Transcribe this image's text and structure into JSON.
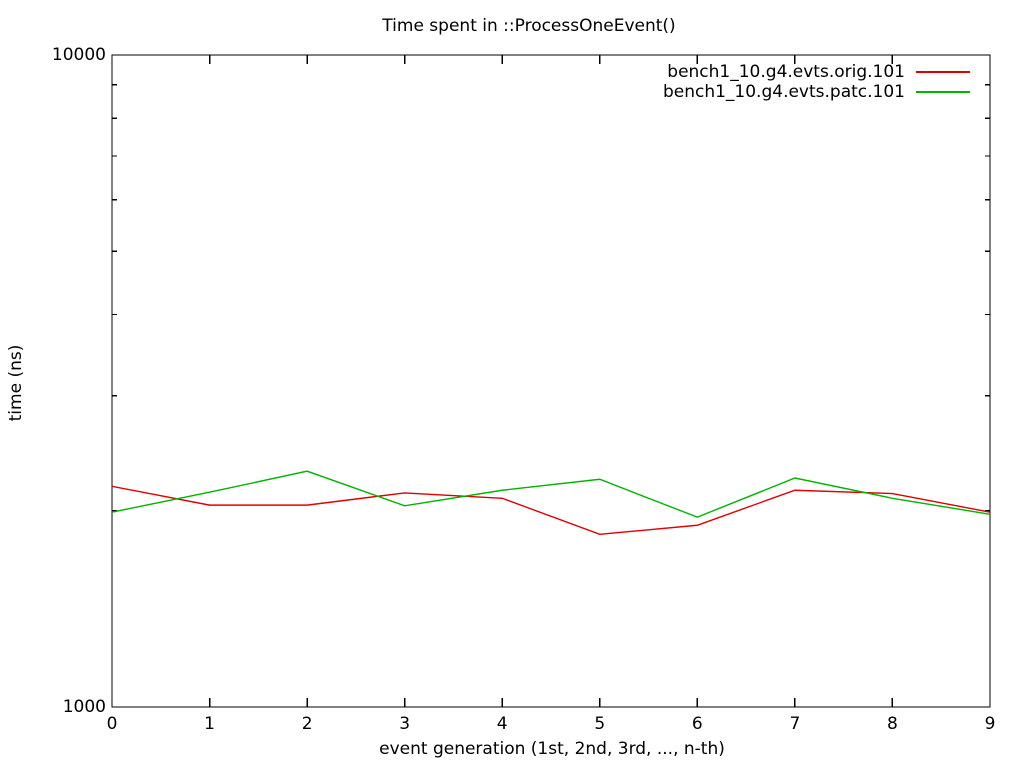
{
  "window": {
    "background": "#ffffff",
    "text_color": "#000000"
  },
  "chart_data": {
    "type": "line",
    "title": "Time spent in ::ProcessOneEvent()",
    "xlabel": "event generation (1st, 2nd, 3rd, ..., n-th)",
    "ylabel": "time (ns)",
    "xlim": [
      0,
      9
    ],
    "ylim": [
      1000,
      10000
    ],
    "yscale": "log",
    "grid": false,
    "legend_position": "top-right-inside",
    "axis_color": "#000000",
    "x": [
      0,
      1,
      2,
      3,
      4,
      5,
      6,
      7,
      8,
      9
    ],
    "xtick_labels": [
      "0",
      "1",
      "2",
      "3",
      "4",
      "5",
      "6",
      "7",
      "8",
      "9"
    ],
    "yticks": [
      1000,
      10000
    ],
    "ytick_labels": [
      "1000",
      "10000"
    ],
    "yminorticks": [
      2000,
      3000,
      4000,
      5000,
      6000,
      7000,
      8000,
      9000
    ],
    "series": [
      {
        "name": "bench1_10.g4.evts.orig.101",
        "color": "#e00000",
        "values": [
          2180,
          2040,
          2040,
          2130,
          2090,
          1840,
          1900,
          2150,
          2125,
          1990
        ]
      },
      {
        "name": "bench1_10.g4.evts.patc.101",
        "color": "#00b400",
        "values": [
          1990,
          2135,
          2300,
          2035,
          2150,
          2235,
          1955,
          2245,
          2090,
          1975
        ]
      }
    ]
  }
}
